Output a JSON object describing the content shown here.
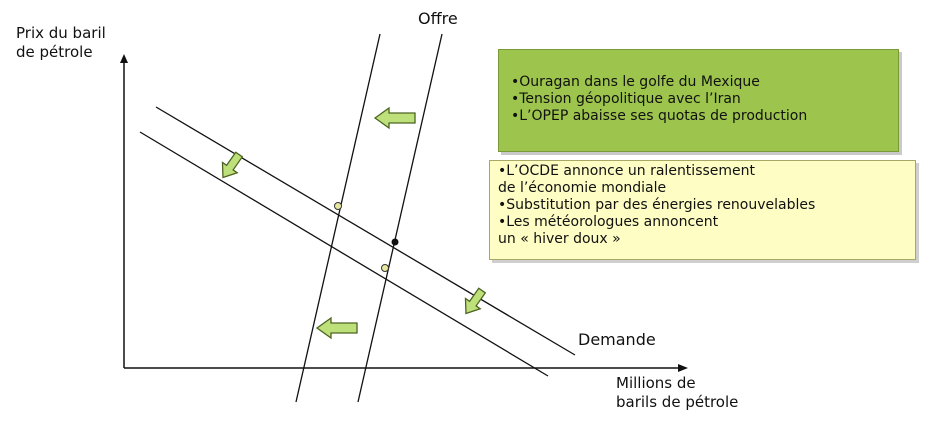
{
  "labels": {
    "y_axis": [
      "Prix du baril",
      "de pétrole"
    ],
    "x_axis": [
      "Millions de",
      "barils de pétrole"
    ],
    "supply": "Offre",
    "demand": "Demande"
  },
  "supply_factors": [
    "•Ouragan dans le golfe du Mexique",
    "•Tension géopolitique avec l’Iran",
    "•L’OPEP abaisse ses quotas de production"
  ],
  "demand_factors": [
    "•L’OCDE annonce un ralentissement",
    "de l’économie mondiale",
    "•Substitution par des énergies renouvelables",
    "•Les météorologues annoncent",
    "un « hiver doux »"
  ],
  "colors": {
    "supply_box": "#9dc44c",
    "demand_box": "#fdfdc4",
    "arrow_fill": "#bde07a",
    "arrow_stroke": "#4c6420",
    "line": "#111111",
    "point_fill": "#e8e8a0"
  }
}
